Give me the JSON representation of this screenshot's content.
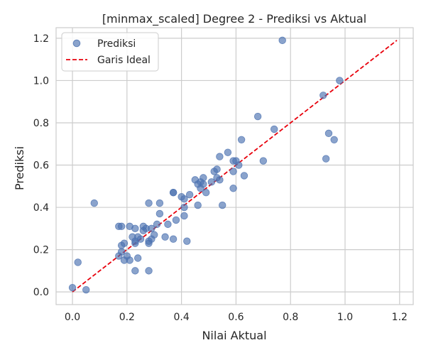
{
  "chart_data": {
    "type": "scatter",
    "title": "[minmax_scaled] Degree 2 - Prediksi vs Aktual",
    "xlabel": "Nilai Aktual",
    "ylabel": "Prediksi",
    "xlim": [
      -0.06,
      1.25
    ],
    "ylim": [
      -0.06,
      1.25
    ],
    "grid": true,
    "legend_position": "upper-left",
    "x_ticks": [
      "0.0",
      "0.2",
      "0.4",
      "0.6",
      "0.8",
      "1.0",
      "1.2"
    ],
    "y_ticks": [
      "0.0",
      "0.2",
      "0.4",
      "0.6",
      "0.8",
      "1.0",
      "1.2"
    ],
    "x_tick_values": [
      0.0,
      0.2,
      0.4,
      0.6,
      0.8,
      1.0,
      1.2
    ],
    "y_tick_values": [
      0.0,
      0.2,
      0.4,
      0.6,
      0.8,
      1.0,
      1.2
    ],
    "series": [
      {
        "name": "Prediksi",
        "kind": "scatter",
        "color": "#4C72B0",
        "points": [
          [
            0.0,
            0.02
          ],
          [
            0.02,
            0.14
          ],
          [
            0.05,
            0.01
          ],
          [
            0.08,
            0.42
          ],
          [
            0.17,
            0.31
          ],
          [
            0.17,
            0.17
          ],
          [
            0.18,
            0.22
          ],
          [
            0.18,
            0.19
          ],
          [
            0.18,
            0.31
          ],
          [
            0.19,
            0.23
          ],
          [
            0.19,
            0.15
          ],
          [
            0.2,
            0.17
          ],
          [
            0.21,
            0.31
          ],
          [
            0.21,
            0.15
          ],
          [
            0.22,
            0.26
          ],
          [
            0.23,
            0.3
          ],
          [
            0.23,
            0.24
          ],
          [
            0.23,
            0.23
          ],
          [
            0.23,
            0.1
          ],
          [
            0.24,
            0.26
          ],
          [
            0.24,
            0.16
          ],
          [
            0.25,
            0.25
          ],
          [
            0.26,
            0.29
          ],
          [
            0.26,
            0.31
          ],
          [
            0.27,
            0.3
          ],
          [
            0.28,
            0.23
          ],
          [
            0.28,
            0.42
          ],
          [
            0.28,
            0.24
          ],
          [
            0.28,
            0.1
          ],
          [
            0.29,
            0.25
          ],
          [
            0.29,
            0.3
          ],
          [
            0.3,
            0.27
          ],
          [
            0.31,
            0.32
          ],
          [
            0.32,
            0.37
          ],
          [
            0.32,
            0.42
          ],
          [
            0.34,
            0.26
          ],
          [
            0.35,
            0.32
          ],
          [
            0.37,
            0.47
          ],
          [
            0.37,
            0.47
          ],
          [
            0.37,
            0.25
          ],
          [
            0.38,
            0.34
          ],
          [
            0.4,
            0.45
          ],
          [
            0.41,
            0.44
          ],
          [
            0.41,
            0.4
          ],
          [
            0.41,
            0.36
          ],
          [
            0.42,
            0.24
          ],
          [
            0.43,
            0.46
          ],
          [
            0.45,
            0.53
          ],
          [
            0.46,
            0.51
          ],
          [
            0.46,
            0.41
          ],
          [
            0.47,
            0.49
          ],
          [
            0.47,
            0.52
          ],
          [
            0.48,
            0.54
          ],
          [
            0.48,
            0.51
          ],
          [
            0.49,
            0.47
          ],
          [
            0.51,
            0.52
          ],
          [
            0.52,
            0.57
          ],
          [
            0.53,
            0.54
          ],
          [
            0.53,
            0.58
          ],
          [
            0.54,
            0.64
          ],
          [
            0.54,
            0.53
          ],
          [
            0.55,
            0.41
          ],
          [
            0.57,
            0.66
          ],
          [
            0.59,
            0.62
          ],
          [
            0.59,
            0.57
          ],
          [
            0.59,
            0.49
          ],
          [
            0.6,
            0.62
          ],
          [
            0.61,
            0.6
          ],
          [
            0.62,
            0.72
          ],
          [
            0.63,
            0.55
          ],
          [
            0.68,
            0.83
          ],
          [
            0.7,
            0.62
          ],
          [
            0.74,
            0.77
          ],
          [
            0.77,
            1.19
          ],
          [
            0.92,
            0.93
          ],
          [
            0.93,
            0.63
          ],
          [
            0.94,
            0.75
          ],
          [
            0.96,
            0.72
          ],
          [
            0.98,
            1.0
          ]
        ]
      },
      {
        "name": "Garis Ideal",
        "kind": "line",
        "style": "dashed",
        "color": "#E8000B",
        "x": [
          0.0,
          1.19
        ],
        "y": [
          0.0,
          1.19
        ]
      }
    ]
  }
}
